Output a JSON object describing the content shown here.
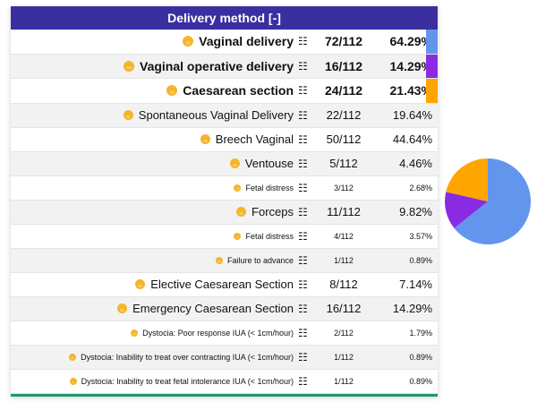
{
  "header": {
    "title": "Delivery method [-]",
    "collapse_symbol": "[-]"
  },
  "icons": {
    "row_icon": "baby-icon",
    "details_icon": "grid-icon",
    "details_glyph": "☷"
  },
  "rows": [
    {
      "label": "Vaginal delivery",
      "count": "72/112",
      "percent": "64.29%",
      "level": 1,
      "color": "#6495ed"
    },
    {
      "label": "Vaginal operative delivery",
      "count": "16/112",
      "percent": "14.29%",
      "level": 1,
      "color": "#8a2be2"
    },
    {
      "label": "Caesarean section",
      "count": "24/112",
      "percent": "21.43%",
      "level": 1,
      "color": "#ffa500"
    },
    {
      "label": "Spontaneous Vaginal Delivery",
      "count": "22/112",
      "percent": "19.64%",
      "level": 2
    },
    {
      "label": "Breech Vaginal",
      "count": "50/112",
      "percent": "44.64%",
      "level": 2
    },
    {
      "label": "Ventouse",
      "count": "5/112",
      "percent": "4.46%",
      "level": 2
    },
    {
      "label": "Fetal distress",
      "count": "3/112",
      "percent": "2.68%",
      "level": 3
    },
    {
      "label": "Forceps",
      "count": "11/112",
      "percent": "9.82%",
      "level": 2
    },
    {
      "label": "Fetal distress",
      "count": "4/112",
      "percent": "3.57%",
      "level": 3
    },
    {
      "label": "Failure to advance",
      "count": "1/112",
      "percent": "0.89%",
      "level": 3
    },
    {
      "label": "Elective Caesarean Section",
      "count": "8/112",
      "percent": "7.14%",
      "level": 2
    },
    {
      "label": "Emergency Caesarean Section",
      "count": "16/112",
      "percent": "14.29%",
      "level": 2
    },
    {
      "label": "Dystocia: Poor response IUA (< 1cm/hour)",
      "count": "2/112",
      "percent": "1.79%",
      "level": 3
    },
    {
      "label": "Dystocia: Inability to treat over contracting IUA (< 1cm/hour)",
      "count": "1/112",
      "percent": "0.89%",
      "level": 3
    },
    {
      "label": "Dystocia: Inability to treat fetal intolerance IUA (< 1cm/hour)",
      "count": "1/112",
      "percent": "0.89%",
      "level": 3
    }
  ],
  "colors": {
    "header_bg": "#3a2fa0",
    "bottom_line": "#1a9a6e"
  },
  "chart_data": {
    "type": "pie",
    "title": "",
    "categories": [
      "Vaginal delivery",
      "Vaginal operative delivery",
      "Caesarean section"
    ],
    "values": [
      64.29,
      14.29,
      21.43
    ],
    "colors": [
      "#6495ed",
      "#8a2be2",
      "#ffa500"
    ],
    "start": "top, clockwise",
    "legend": "none"
  }
}
